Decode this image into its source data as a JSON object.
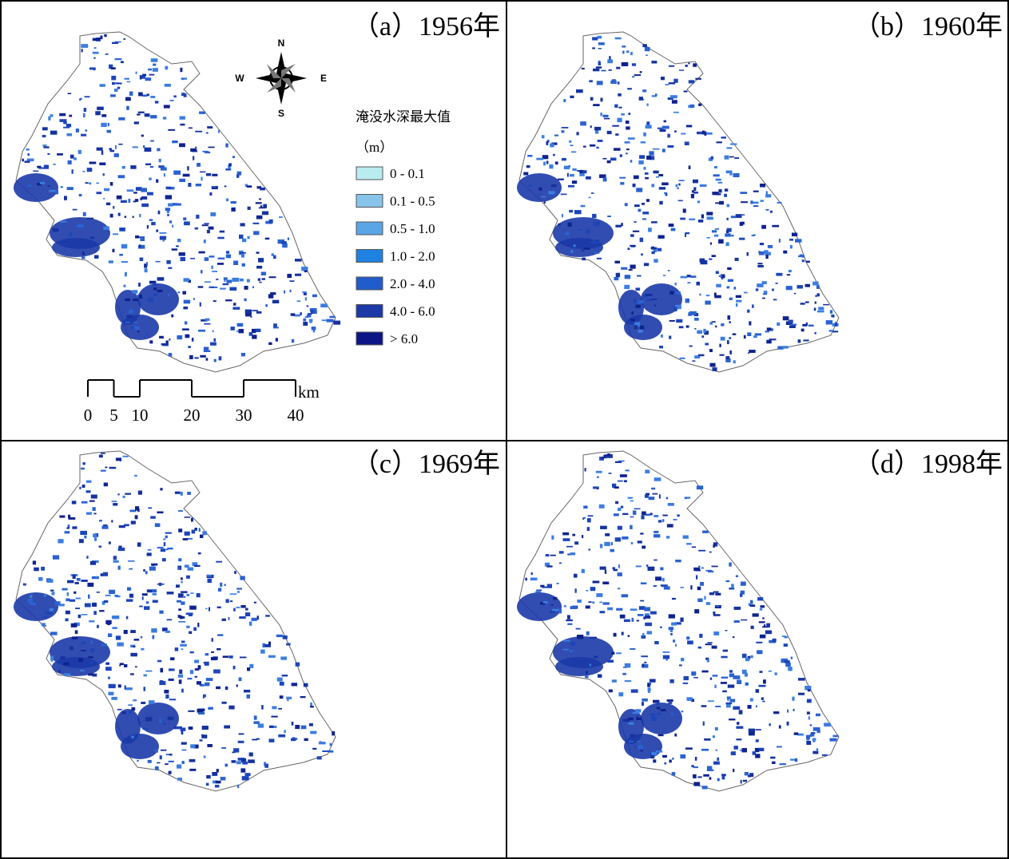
{
  "panels": [
    {
      "title": "（a）1956年"
    },
    {
      "title": "（b）1960年"
    },
    {
      "title": "（c）1969年"
    },
    {
      "title": "（d）1998年"
    }
  ],
  "compass": {
    "north": "N",
    "south": "S",
    "west": "W",
    "east": "E"
  },
  "legend": {
    "title": "淹没水深最大值",
    "unit": "（m）",
    "items": [
      {
        "label": "0 - 0.1",
        "color": "#b9ecef"
      },
      {
        "label": "0.1 - 0.5",
        "color": "#88c4ea"
      },
      {
        "label": "0.5 - 1.0",
        "color": "#5aa5e6"
      },
      {
        "label": "1.0 - 2.0",
        "color": "#1f82e0"
      },
      {
        "label": "2.0 - 4.0",
        "color": "#215ccc"
      },
      {
        "label": "4.0 - 6.0",
        "color": "#1b3aa8"
      },
      {
        "label": "> 6.0",
        "color": "#0b1585"
      }
    ]
  },
  "scale_bar": {
    "labels": [
      0,
      5,
      10,
      20,
      30,
      40
    ],
    "unit": "km"
  }
}
